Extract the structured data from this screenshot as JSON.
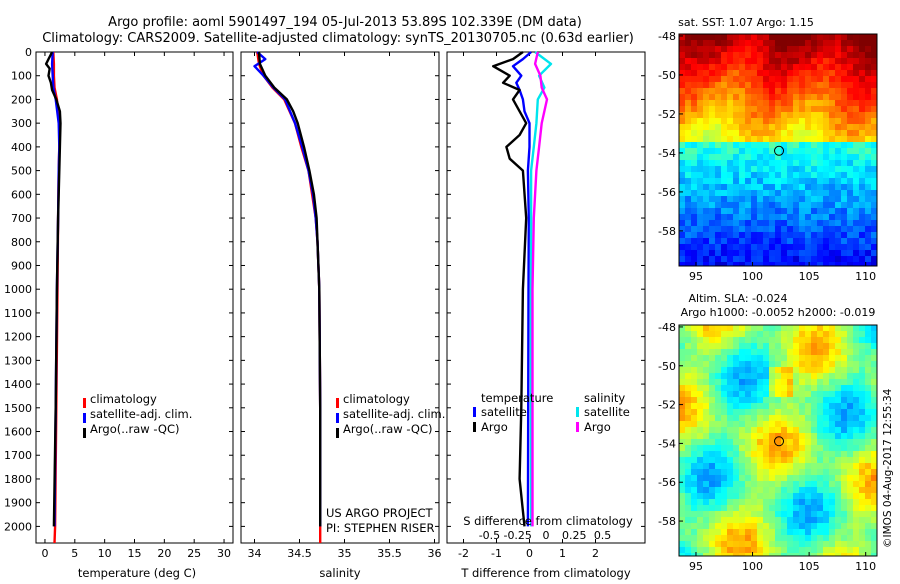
{
  "header": {
    "line1": "Argo profile: aoml 5901497_194 05-Jul-2013 53.89S 102.339E (DM data)",
    "line2": "Climatology: CARS2009. Satellite-adjusted climatology: synTS_20130705.nc (0.63d earlier)"
  },
  "colors": {
    "climatology": "#ff0000",
    "satellite": "#0000ff",
    "argo": "#000000",
    "sal_satellite": "#00e5ee",
    "sal_argo": "#ff00ff"
  },
  "chart_data": [
    {
      "type": "line",
      "name": "temperature-profile",
      "xlabel": "temperature (deg C)",
      "ylabel": "",
      "xlim": [
        -1.5,
        31.5
      ],
      "ylim": [
        2070,
        0
      ],
      "xticks": [
        0,
        5,
        10,
        15,
        20,
        25,
        30
      ],
      "yticks": [
        0,
        100,
        200,
        300,
        400,
        500,
        600,
        700,
        800,
        900,
        1000,
        1100,
        1200,
        1300,
        1400,
        1500,
        1600,
        1700,
        1800,
        1900,
        2000
      ],
      "legend": [
        "climatology",
        "satellite-adj. clim.",
        "Argo(..raw -QC)"
      ],
      "series": [
        {
          "name": "climatology",
          "depth": [
            0,
            50,
            100,
            150,
            200,
            300,
            400,
            500,
            700,
            1000,
            1500,
            2000,
            2070
          ],
          "values": [
            1.4,
            1.5,
            1.5,
            1.6,
            2.0,
            2.4,
            2.4,
            2.3,
            2.2,
            2.1,
            1.9,
            1.7,
            1.6
          ]
        },
        {
          "name": "satellite-adj. clim.",
          "depth": [
            0,
            50,
            100,
            150,
            200,
            300,
            400,
            500,
            700,
            1000,
            1500,
            2000
          ],
          "values": [
            1.3,
            1.2,
            1.3,
            1.4,
            1.8,
            2.3,
            2.4,
            2.3,
            2.2,
            2.0,
            1.8,
            1.6
          ]
        },
        {
          "name": "Argo(..raw -QC)",
          "depth": [
            0,
            50,
            70,
            100,
            130,
            160,
            200,
            250,
            300,
            400,
            500,
            700,
            1000,
            1500,
            2000
          ],
          "values": [
            1.2,
            0.2,
            0.8,
            0.6,
            1.0,
            1.2,
            1.9,
            2.5,
            2.6,
            2.5,
            2.4,
            2.2,
            2.0,
            1.8,
            1.5
          ]
        }
      ]
    },
    {
      "type": "line",
      "name": "salinity-profile",
      "xlabel": "salinity",
      "ylabel": "",
      "xlim": [
        33.85,
        36.05
      ],
      "ylim": [
        2070,
        0
      ],
      "xticks": [
        34,
        34.5,
        35,
        35.5,
        36
      ],
      "legend": [
        "climatology",
        "satellite-adj. clim.",
        "Argo(..raw -QC)"
      ],
      "annotation": [
        "US ARGO PROJECT",
        "PI: STEPHEN RISER"
      ],
      "series": [
        {
          "name": "climatology",
          "depth": [
            0,
            50,
            100,
            150,
            200,
            300,
            400,
            500,
            600,
            700,
            800,
            1000,
            1500,
            2000,
            2070
          ],
          "values": [
            34.03,
            34.05,
            34.1,
            34.2,
            34.33,
            34.45,
            34.52,
            34.6,
            34.64,
            34.68,
            34.7,
            34.72,
            34.73,
            34.73,
            34.73
          ]
        },
        {
          "name": "satellite-adj. clim.",
          "depth": [
            0,
            30,
            60,
            100,
            150,
            200,
            300,
            400,
            500,
            600,
            700,
            800,
            1000,
            1500,
            2000
          ],
          "values": [
            34.03,
            34.12,
            34.0,
            34.1,
            34.21,
            34.34,
            34.45,
            34.53,
            34.6,
            34.65,
            34.68,
            34.7,
            34.72,
            34.73,
            34.73
          ]
        },
        {
          "name": "Argo(..raw -QC)",
          "depth": [
            0,
            50,
            100,
            150,
            200,
            250,
            300,
            400,
            500,
            600,
            700,
            900,
            1000,
            1500,
            2000
          ],
          "values": [
            34.05,
            34.06,
            34.12,
            34.22,
            34.36,
            34.43,
            34.48,
            34.55,
            34.61,
            34.66,
            34.69,
            34.71,
            34.72,
            34.73,
            34.73
          ]
        }
      ]
    },
    {
      "type": "line",
      "name": "difference-profile",
      "xlabel": "T difference from climatology",
      "xlabel_top": "S difference from climatology",
      "xlim": [
        -2.5,
        3.5
      ],
      "ylim": [
        2070,
        0
      ],
      "xticks": [
        -2,
        -1,
        0,
        1,
        2
      ],
      "xticks_s": [
        -0.5,
        -0.25,
        0,
        0.25,
        0.5
      ],
      "legend_left_title": "temperature",
      "legend_right_title": "salinity",
      "legend": [
        "satellite",
        "Argo",
        "satellite",
        "Argo"
      ],
      "series": [
        {
          "name": "temperature satellite",
          "depth": [
            0,
            30,
            60,
            100,
            130,
            160,
            200,
            250,
            300,
            400,
            500,
            700,
            1000,
            1500,
            2000
          ],
          "values": [
            0.05,
            -0.2,
            -0.5,
            -0.25,
            -0.4,
            -0.3,
            -0.2,
            -0.15,
            0.0,
            0.0,
            -0.05,
            -0.02,
            -0.03,
            -0.04,
            -0.05
          ]
        },
        {
          "name": "temperature Argo",
          "depth": [
            0,
            30,
            60,
            100,
            130,
            160,
            200,
            250,
            300,
            350,
            400,
            450,
            500,
            700,
            1000,
            1500,
            1800,
            2000
          ],
          "values": [
            -0.2,
            -0.5,
            -1.1,
            -0.6,
            -0.8,
            -0.3,
            -0.5,
            -0.3,
            -0.1,
            -0.3,
            -0.7,
            -0.6,
            -0.2,
            -0.1,
            -0.2,
            -0.25,
            -0.3,
            -0.15
          ]
        },
        {
          "name": "salinity satellite",
          "depth": [
            0,
            50,
            100,
            150,
            200,
            300,
            400,
            500,
            700,
            1000,
            1500,
            2000
          ],
          "values": [
            0.03,
            0.15,
            0.06,
            0.1,
            0.05,
            0.04,
            0.02,
            0.0,
            0.0,
            0.0,
            0.0,
            0.0
          ]
        },
        {
          "name": "salinity Argo",
          "depth": [
            0,
            50,
            100,
            150,
            200,
            300,
            400,
            500,
            700,
            1000,
            1500,
            2000
          ],
          "values": [
            0.05,
            0.03,
            0.07,
            0.08,
            0.12,
            0.08,
            0.06,
            0.04,
            0.02,
            0.01,
            0.01,
            0.01
          ]
        }
      ]
    },
    {
      "type": "heatmap",
      "name": "sst-map",
      "title": "sat. SST: 1.07 Argo: 1.15",
      "xticks": [
        95,
        100,
        105,
        110
      ],
      "yticks": [
        -48,
        -50,
        -52,
        -54,
        -56,
        -58
      ],
      "xlim": [
        93.5,
        111.0
      ],
      "ylim": [
        -59.8,
        -47.9
      ],
      "marker": {
        "lon": 102.34,
        "lat": -53.89
      }
    },
    {
      "type": "heatmap",
      "name": "sla-map",
      "title_line1": "Altim. SLA: -0.024",
      "title_line2": "Argo h1000: -0.0052 h2000: -0.019",
      "xticks": [
        95,
        100,
        105,
        110
      ],
      "yticks": [
        -48,
        -50,
        -52,
        -54,
        -56,
        -58
      ],
      "xlim": [
        93.5,
        111.0
      ],
      "ylim": [
        -59.8,
        -47.9
      ],
      "marker": {
        "lon": 102.34,
        "lat": -53.89
      },
      "stamp": "©IMOS 04-Aug-2017 12:55:34"
    }
  ]
}
